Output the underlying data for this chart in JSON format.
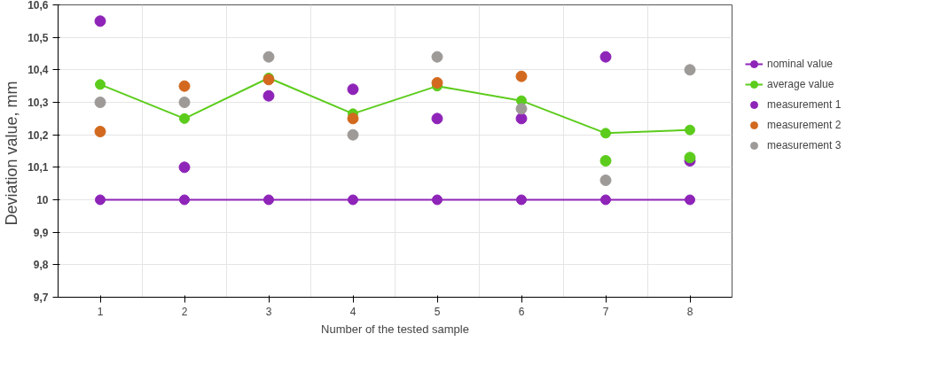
{
  "chart_data": {
    "type": "scatter",
    "xlabel": "Number of the tested sample",
    "ylabel": "Deviation value,  mm",
    "categories": [
      "1",
      "2",
      "3",
      "4",
      "5",
      "6",
      "7",
      "8"
    ],
    "ylim": [
      9.7,
      10.6
    ],
    "yticks": [
      {
        "value": 9.7,
        "label": "9,7"
      },
      {
        "value": 9.8,
        "label": "9,8"
      },
      {
        "value": 9.9,
        "label": "9,9"
      },
      {
        "value": 10,
        "label": "10"
      },
      {
        "value": 10.1,
        "label": "10,1"
      },
      {
        "value": 10.2,
        "label": "10,2"
      },
      {
        "value": 10.3,
        "label": "10,3"
      },
      {
        "value": 10.4,
        "label": "10,4"
      },
      {
        "value": 10.5,
        "label": "10,5"
      },
      {
        "value": 10.6,
        "label": "10,6"
      }
    ],
    "grid": true,
    "legend": "right",
    "marker": "circle",
    "series": [
      {
        "name": "nominal value",
        "type": "line",
        "color": "#8e24b8",
        "values": [
          10,
          10,
          10,
          10,
          10,
          10,
          10,
          10
        ]
      },
      {
        "name": "average value",
        "type": "line",
        "color": "#5ccc1c",
        "values": [
          10.355,
          10.25,
          10.375,
          10.265,
          10.35,
          10.305,
          10.205,
          10.215
        ]
      },
      {
        "name": "measurement 1",
        "color": "#8e24b8",
        "values": [
          10.55,
          10.1,
          10.32,
          10.34,
          10.25,
          10.25,
          10.44,
          10.12
        ]
      },
      {
        "name": "measurement 2",
        "color": "#d2691e",
        "colors": [
          "#d2691e",
          "#d2691e",
          "#d2691e",
          "#d2691e",
          "#d2691e",
          "#d2691e",
          "#5ccc1c",
          "#5ccc1c"
        ],
        "values": [
          10.21,
          10.35,
          10.37,
          10.25,
          10.36,
          10.38,
          10.12,
          10.13
        ]
      },
      {
        "name": "measurement 3",
        "color": "#9e9a98",
        "values": [
          10.3,
          10.3,
          10.44,
          10.2,
          10.44,
          10.28,
          10.06,
          10.4
        ]
      }
    ]
  }
}
